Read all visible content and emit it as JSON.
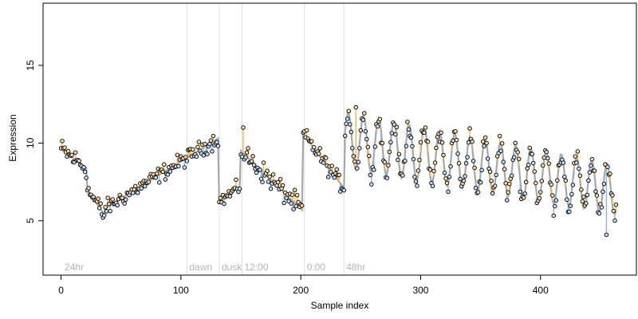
{
  "chart_data": {
    "type": "scatter",
    "title": "",
    "xlabel": "Sample index",
    "ylabel": "Expression",
    "xlim": [
      -15,
      480
    ],
    "ylim": [
      1.5,
      19
    ],
    "xticks": [
      0,
      100,
      200,
      300,
      400
    ],
    "yticks": [
      5,
      10,
      15
    ],
    "grid": false,
    "legend": "none",
    "colors": {
      "fit_line": "#a6a6a6",
      "above_fit": "#f4b35a",
      "below_fit": "#8fb3e6",
      "marker_line": "#e0e0e0",
      "marker_text": "#b3b3b3",
      "point_edge": "#000000"
    },
    "vertical_markers": [
      {
        "x": 105,
        "label": "dawn"
      },
      {
        "x": 132,
        "label": "dusk"
      },
      {
        "x": 151,
        "label": "12:00"
      },
      {
        "x": 203,
        "label": "0:00"
      },
      {
        "x": 236,
        "label": "48hr"
      }
    ],
    "corner_label": {
      "x": 3,
      "label": "24hr"
    },
    "segments": [
      {
        "x_start": 0,
        "x_end": 21,
        "kind": "linear",
        "y_start": 9.6,
        "y_end": 8.4,
        "noise": 0.6
      },
      {
        "x_start": 22,
        "x_end": 36,
        "kind": "linear",
        "y_start": 7.0,
        "y_end": 5.4,
        "noise": 0.5
      },
      {
        "x_start": 37,
        "x_end": 131,
        "kind": "linear",
        "y_start": 5.8,
        "y_end": 10.3,
        "noise": 0.45
      },
      {
        "x_start": 132,
        "x_end": 149,
        "kind": "linear",
        "y_start": 6.2,
        "y_end": 7.2,
        "noise": 0.4
      },
      {
        "x_start": 150,
        "x_end": 201,
        "kind": "linear",
        "y_start": 9.5,
        "y_end": 5.7,
        "noise": 0.6
      },
      {
        "x_start": 202,
        "x_end": 236,
        "kind": "linear",
        "y_start": 10.6,
        "y_end": 7.1,
        "noise": 0.45
      },
      {
        "x_start": 237,
        "x_end": 463,
        "kind": "oscillating",
        "mean_start": 10.2,
        "mean_end": 7.0,
        "amp_start": 1.8,
        "amp_end": 1.6,
        "period": 12.7,
        "noise": 0.55
      }
    ],
    "extreme_points": [
      {
        "x": 246,
        "y": 12.3
      },
      {
        "x": 455,
        "y": 4.1
      },
      {
        "x": 152,
        "y": 11.0
      },
      {
        "x": 35,
        "y": 5.2
      }
    ]
  }
}
